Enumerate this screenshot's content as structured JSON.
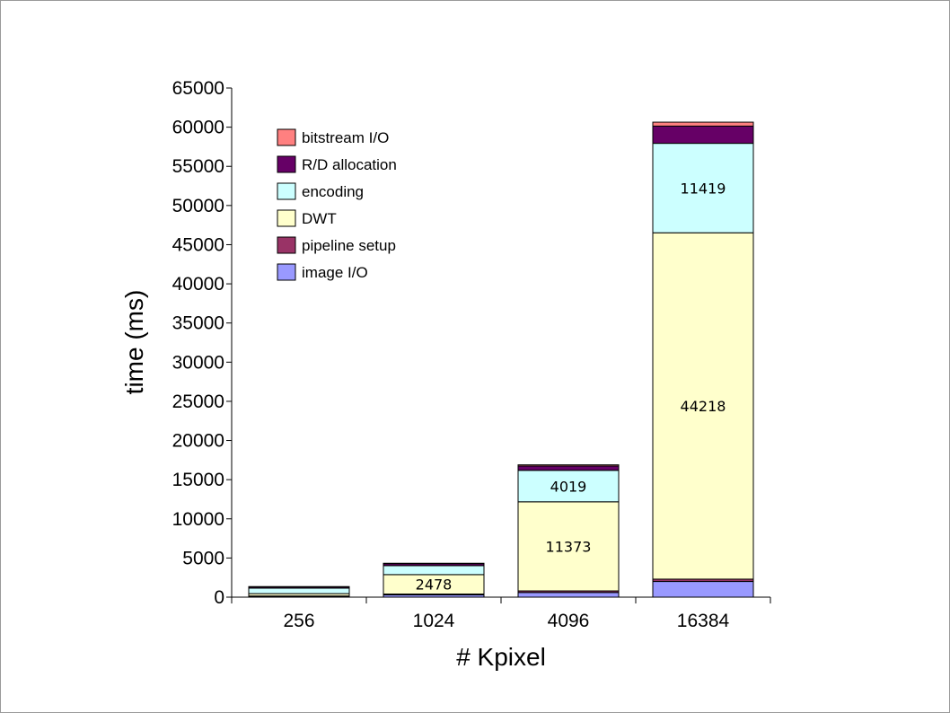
{
  "chart_data": {
    "type": "bar",
    "stacked": true,
    "categories": [
      "256",
      "1024",
      "4096",
      "16384"
    ],
    "xlabel": "# Kpixel",
    "ylabel": "time (ms)",
    "ylim": [
      0,
      65000
    ],
    "yticks": [
      "0",
      "5000",
      "10000",
      "15000",
      "20000",
      "25000",
      "30000",
      "35000",
      "40000",
      "45000",
      "50000",
      "55000",
      "60000",
      "65000"
    ],
    "grid": false,
    "legend_position": "top-left",
    "series": [
      {
        "name": "image I/O",
        "color": "#9999ff",
        "values": [
          100,
          300,
          600,
          2000
        ]
      },
      {
        "name": "pipeline setup",
        "color": "#993366",
        "values": [
          50,
          100,
          200,
          300
        ]
      },
      {
        "name": "DWT",
        "color": "#ffffcc",
        "values": [
          300,
          2478,
          11373,
          44218
        ]
      },
      {
        "name": "encoding",
        "color": "#ccffff",
        "values": [
          700,
          1150,
          4019,
          11419
        ]
      },
      {
        "name": "R/D allocation",
        "color": "#660066",
        "values": [
          150,
          250,
          550,
          2200
        ]
      },
      {
        "name": "bitstream I/O",
        "color": "#ff8080",
        "values": [
          50,
          50,
          150,
          500
        ]
      }
    ],
    "data_labels": [
      {
        "series": "DWT",
        "category": "1024",
        "text": "2478"
      },
      {
        "series": "DWT",
        "category": "4096",
        "text": "11373"
      },
      {
        "series": "DWT",
        "category": "16384",
        "text": "44218"
      },
      {
        "series": "encoding",
        "category": "4096",
        "text": "4019"
      },
      {
        "series": "encoding",
        "category": "16384",
        "text": "11419"
      }
    ]
  }
}
